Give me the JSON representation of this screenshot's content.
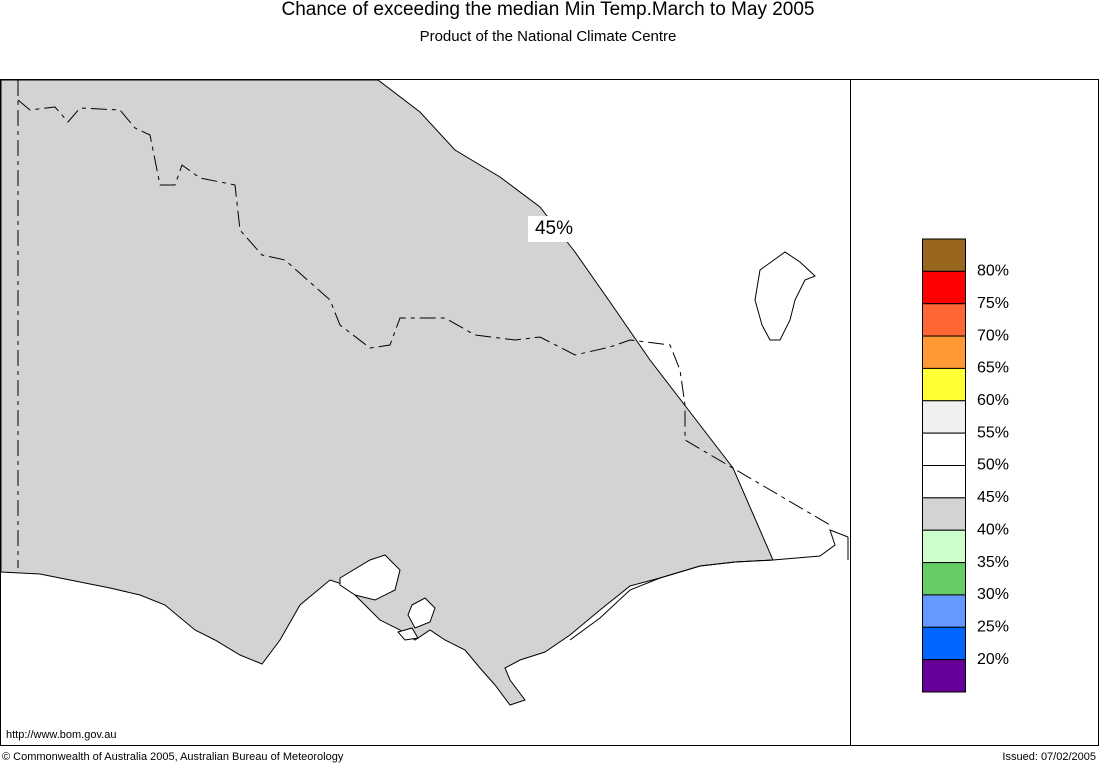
{
  "header": {
    "title": "Chance of exceeding the median Min Temp.March to May 2005",
    "subtitle": "Product of the National Climate Centre"
  },
  "map": {
    "region_label": "45%"
  },
  "legend": {
    "labels": [
      "80%",
      "75%",
      "70%",
      "65%",
      "60%",
      "55%",
      "50%",
      "45%",
      "40%",
      "35%",
      "30%",
      "25%",
      "20%"
    ],
    "colors": [
      "#99661f",
      "#ff0000",
      "#ff6633",
      "#ff9933",
      "#ffff33",
      "#f0f0f0",
      "#ffffff",
      "#ffffff",
      "#d3d3d3",
      "#ccffcc",
      "#66cc66",
      "#6699ff",
      "#0066ff",
      "#660099"
    ]
  },
  "footer": {
    "url": "http://www.bom.gov.au",
    "copyright": "© Commonwealth of Australia 2005, Australian Bureau of Meteorology",
    "issued": "Issued: 07/02/2005"
  }
}
